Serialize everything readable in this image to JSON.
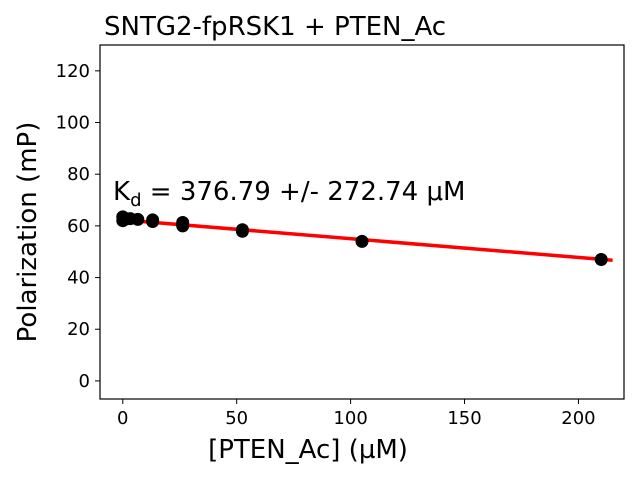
{
  "chart_data": {
    "type": "scatter",
    "title": "SNTG2-fpRSK1 + PTEN_Ac",
    "xlabel": "[PTEN_Ac] (µM)",
    "ylabel": "Polarization (mP)",
    "xlim": [
      -10,
      220
    ],
    "ylim": [
      -7,
      130
    ],
    "xticks": [
      0,
      50,
      100,
      150,
      200
    ],
    "yticks": [
      0,
      20,
      40,
      60,
      80,
      100,
      120
    ],
    "grid": false,
    "annotation": {
      "prefix": "K",
      "subscript": "d",
      "text": " = 376.79 +/- 272.74 μM"
    },
    "series": [
      {
        "kind": "scatter",
        "color": "#000000",
        "points": [
          {
            "x": 0,
            "y": 62
          },
          {
            "x": 0,
            "y": 63.5
          },
          {
            "x": 0.4,
            "y": 62.5
          },
          {
            "x": 0.8,
            "y": 63
          },
          {
            "x": 1.6,
            "y": 62.7
          },
          {
            "x": 3.3,
            "y": 62.8
          },
          {
            "x": 6.6,
            "y": 62.5
          },
          {
            "x": 13.1,
            "y": 62.3
          },
          {
            "x": 13.1,
            "y": 61.7
          },
          {
            "x": 26.3,
            "y": 61.3
          },
          {
            "x": 26.3,
            "y": 60
          },
          {
            "x": 52.5,
            "y": 58.5
          },
          {
            "x": 52.5,
            "y": 57.9
          },
          {
            "x": 105,
            "y": 54
          },
          {
            "x": 210,
            "y": 47
          }
        ]
      },
      {
        "kind": "fit",
        "color": "#ff0000",
        "x": [
          0,
          215
        ],
        "y": [
          62.3,
          46.7
        ]
      }
    ]
  }
}
